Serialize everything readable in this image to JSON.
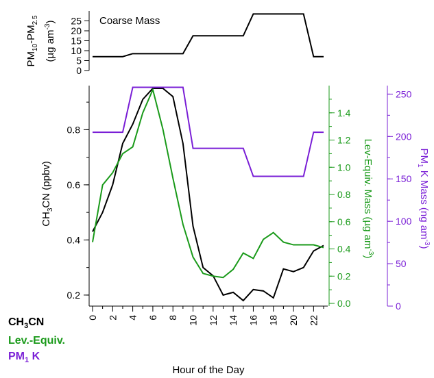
{
  "chart_data": [
    {
      "type": "line",
      "title": "Coarse Mass",
      "ylabel": "PM10-PM2.5 (µg am-3)",
      "ylabel_parts": {
        "a": "PM",
        "a_sub": "10",
        "b": "-PM",
        "b_sub": "2.5",
        "line2": "(µg am",
        "line2_sup": "-3",
        "line2_end": ")"
      },
      "ylim": [
        0,
        30
      ],
      "yticks": [
        0,
        5,
        10,
        15,
        20,
        25
      ],
      "x": [
        0,
        1,
        2,
        3,
        4,
        5,
        6,
        7,
        8,
        9,
        10,
        11,
        12,
        13,
        14,
        15,
        16,
        17,
        18,
        19,
        20,
        21,
        22,
        23
      ],
      "series": [
        {
          "values": [
            7,
            7,
            7,
            7,
            8.5,
            8.5,
            8.5,
            8.5,
            8.5,
            8.5,
            17.5,
            17.5,
            17.5,
            17.5,
            17.5,
            17.5,
            28.5,
            28.5,
            28.5,
            28.5,
            28.5,
            28.5,
            7,
            7
          ],
          "color": "#000000"
        }
      ]
    },
    {
      "type": "line",
      "xlabel": "Hour of the Day",
      "xticks": [
        0,
        2,
        4,
        6,
        8,
        10,
        12,
        14,
        16,
        18,
        20,
        22
      ],
      "xlim": [
        0,
        23
      ],
      "axes": [
        {
          "side": "left",
          "label": "CH3CN (ppbv)",
          "label_parts": {
            "a": "CH",
            "a_sub": "3",
            "b": "CN (ppbv)"
          },
          "ylim": [
            0.16,
            0.96
          ],
          "ticks": [
            "0.2",
            "0.4",
            "0.6",
            "0.8"
          ],
          "color": "#000000"
        },
        {
          "side": "right",
          "label": "Lev-Equiv. Mass (µg am-3)",
          "label_parts": {
            "a": "Lev-Equiv. Mass (µg am",
            "a_sup": "-3",
            "b": ")"
          },
          "ylim": [
            -0.02,
            1.6
          ],
          "ticks": [
            "0.0",
            "0.2",
            "0.4",
            "0.6",
            "0.8",
            "1.0",
            "1.2",
            "1.4"
          ],
          "color": "#1a9a1a"
        },
        {
          "side": "right",
          "label": "PM1 K Mass (ng am-3)",
          "label_parts": {
            "a": "PM",
            "a_sub": "1",
            "b": " K Mass (ng am",
            "b_sup": "-3",
            "c": ")"
          },
          "ylim": [
            0,
            260
          ],
          "ticks": [
            "0",
            "50",
            "100",
            "150",
            "200",
            "250"
          ],
          "color": "#7a1fd6"
        }
      ],
      "series": [
        {
          "axis": 0,
          "color": "#000000",
          "x": [
            0,
            1,
            2,
            3,
            4,
            5,
            6,
            6.5,
            7,
            8,
            9,
            10,
            11,
            12,
            13,
            14,
            15,
            16,
            17,
            18,
            19,
            20,
            21,
            22,
            23
          ],
          "values": [
            0.43,
            0.5,
            0.6,
            0.75,
            0.82,
            0.91,
            0.95,
            0.95,
            0.95,
            0.92,
            0.75,
            0.45,
            0.3,
            0.27,
            0.2,
            0.21,
            0.18,
            0.22,
            0.215,
            0.19,
            0.295,
            0.285,
            0.3,
            0.36,
            0.38
          ]
        },
        {
          "axis": 1,
          "color": "#1a9a1a",
          "x": [
            0,
            1,
            2,
            3,
            4,
            5,
            6,
            7,
            8,
            9,
            10,
            11,
            12,
            13,
            14,
            15,
            16,
            17,
            18,
            19,
            20,
            21,
            22,
            23
          ],
          "values": [
            0.45,
            0.87,
            0.96,
            1.1,
            1.15,
            1.4,
            1.57,
            1.28,
            0.92,
            0.58,
            0.34,
            0.22,
            0.2,
            0.19,
            0.25,
            0.37,
            0.33,
            0.47,
            0.52,
            0.45,
            0.43,
            0.43,
            0.43,
            0.41
          ]
        },
        {
          "axis": 2,
          "color": "#7a1fd6",
          "x": [
            0,
            1,
            2,
            3,
            4,
            5,
            6,
            7,
            8,
            9,
            10,
            11,
            12,
            13,
            14,
            15,
            16,
            17,
            18,
            19,
            20,
            21,
            22,
            23
          ],
          "values": [
            205,
            205,
            205,
            205,
            258,
            258,
            258,
            258,
            258,
            258,
            186,
            186,
            186,
            186,
            186,
            186,
            153,
            153,
            153,
            153,
            153,
            153,
            205,
            205
          ]
        }
      ],
      "legend": [
        {
          "label": "CH3CN",
          "parts": {
            "a": "CH",
            "a_sub": "3",
            "b": "CN"
          },
          "color": "#000000"
        },
        {
          "label": "Lev.-Equiv.",
          "parts": {
            "a": "Lev.-Equiv."
          },
          "color": "#1a9a1a"
        },
        {
          "label": "PM1 K",
          "parts": {
            "a": "PM",
            "a_sub": "1",
            "b": " K"
          },
          "color": "#7a1fd6"
        }
      ]
    }
  ]
}
